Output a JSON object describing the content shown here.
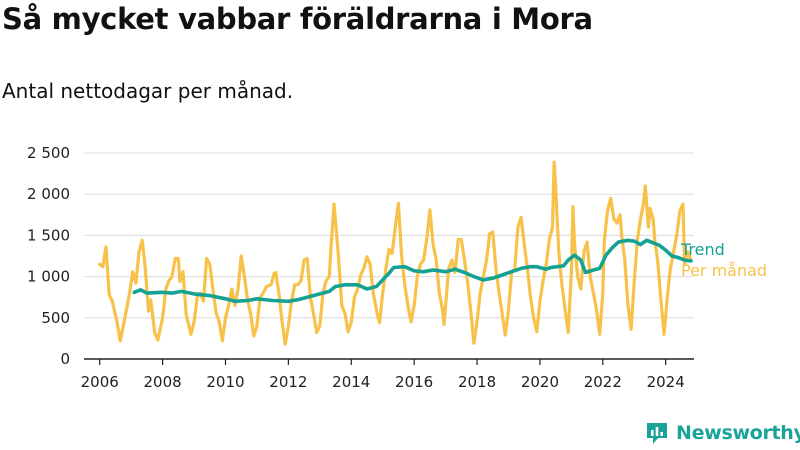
{
  "title": "Så mycket vabbar föräldrarna i Mora",
  "subtitle": "Antal nettodagar per månad.",
  "brand": {
    "name": "Newsworthy",
    "color": "#1aa399"
  },
  "colors": {
    "monthly": "#f8c24a",
    "trend": "#16a292",
    "grid": "#dcdcdc",
    "axis": "#222222"
  },
  "chart_data": {
    "type": "line",
    "x_ticks": [
      "2006",
      "2008",
      "2010",
      "2012",
      "2014",
      "2016",
      "2018",
      "2020",
      "2022",
      "2024"
    ],
    "y_ticks": [
      "0",
      "500",
      "1 000",
      "1 500",
      "2 000",
      "2 500"
    ],
    "ylim": [
      0,
      2500
    ],
    "xlim": [
      2005.5,
      2024.9
    ],
    "grid": true,
    "legend": "right-end",
    "series": [
      {
        "name": "Per månad",
        "color": "#f8c24a",
        "points": [
          [
            2006.0,
            1150
          ],
          [
            2006.1,
            1120
          ],
          [
            2006.2,
            1360
          ],
          [
            2006.3,
            780
          ],
          [
            2006.4,
            700
          ],
          [
            2006.55,
            450
          ],
          [
            2006.65,
            220
          ],
          [
            2006.8,
            500
          ],
          [
            2006.95,
            800
          ],
          [
            2007.05,
            1060
          ],
          [
            2007.15,
            920
          ],
          [
            2007.25,
            1300
          ],
          [
            2007.35,
            1440
          ],
          [
            2007.45,
            1100
          ],
          [
            2007.55,
            580
          ],
          [
            2007.62,
            720
          ],
          [
            2007.75,
            320
          ],
          [
            2007.85,
            230
          ],
          [
            2008.0,
            500
          ],
          [
            2008.1,
            850
          ],
          [
            2008.2,
            950
          ],
          [
            2008.3,
            1000
          ],
          [
            2008.4,
            1220
          ],
          [
            2008.5,
            1220
          ],
          [
            2008.55,
            940
          ],
          [
            2008.65,
            1060
          ],
          [
            2008.75,
            540
          ],
          [
            2008.9,
            300
          ],
          [
            2009.0,
            450
          ],
          [
            2009.1,
            750
          ],
          [
            2009.2,
            800
          ],
          [
            2009.3,
            700
          ],
          [
            2009.4,
            1220
          ],
          [
            2009.5,
            1150
          ],
          [
            2009.6,
            850
          ],
          [
            2009.7,
            560
          ],
          [
            2009.8,
            450
          ],
          [
            2009.9,
            220
          ],
          [
            2010.0,
            500
          ],
          [
            2010.1,
            650
          ],
          [
            2010.2,
            850
          ],
          [
            2010.3,
            650
          ],
          [
            2010.4,
            850
          ],
          [
            2010.5,
            1250
          ],
          [
            2010.6,
            1000
          ],
          [
            2010.7,
            720
          ],
          [
            2010.8,
            550
          ],
          [
            2010.9,
            280
          ],
          [
            2011.0,
            400
          ],
          [
            2011.1,
            750
          ],
          [
            2011.2,
            800
          ],
          [
            2011.3,
            880
          ],
          [
            2011.45,
            900
          ],
          [
            2011.55,
            1040
          ],
          [
            2011.6,
            1050
          ],
          [
            2011.7,
            800
          ],
          [
            2011.8,
            450
          ],
          [
            2011.9,
            180
          ],
          [
            2012.0,
            400
          ],
          [
            2012.1,
            700
          ],
          [
            2012.2,
            900
          ],
          [
            2012.3,
            900
          ],
          [
            2012.4,
            950
          ],
          [
            2012.5,
            1200
          ],
          [
            2012.6,
            1220
          ],
          [
            2012.7,
            750
          ],
          [
            2012.8,
            550
          ],
          [
            2012.9,
            320
          ],
          [
            2013.0,
            400
          ],
          [
            2013.1,
            800
          ],
          [
            2013.2,
            950
          ],
          [
            2013.3,
            1000
          ],
          [
            2013.35,
            1320
          ],
          [
            2013.45,
            1880
          ],
          [
            2013.5,
            1680
          ],
          [
            2013.6,
            1200
          ],
          [
            2013.7,
            650
          ],
          [
            2013.8,
            550
          ],
          [
            2013.9,
            330
          ],
          [
            2014.0,
            450
          ],
          [
            2014.1,
            750
          ],
          [
            2014.2,
            850
          ],
          [
            2014.3,
            1020
          ],
          [
            2014.4,
            1100
          ],
          [
            2014.5,
            1240
          ],
          [
            2014.6,
            1150
          ],
          [
            2014.7,
            800
          ],
          [
            2014.85,
            500
          ],
          [
            2014.9,
            440
          ],
          [
            2015.0,
            800
          ],
          [
            2015.1,
            1100
          ],
          [
            2015.2,
            1330
          ],
          [
            2015.3,
            1280
          ],
          [
            2015.4,
            1600
          ],
          [
            2015.5,
            1890
          ],
          [
            2015.6,
            1250
          ],
          [
            2015.7,
            900
          ],
          [
            2015.8,
            650
          ],
          [
            2015.9,
            450
          ],
          [
            2016.0,
            650
          ],
          [
            2016.1,
            1000
          ],
          [
            2016.2,
            1150
          ],
          [
            2016.3,
            1200
          ],
          [
            2016.4,
            1450
          ],
          [
            2016.5,
            1810
          ],
          [
            2016.6,
            1400
          ],
          [
            2016.7,
            1200
          ],
          [
            2016.8,
            800
          ],
          [
            2016.9,
            600
          ],
          [
            2016.95,
            420
          ],
          [
            2017.0,
            650
          ],
          [
            2017.1,
            1100
          ],
          [
            2017.2,
            1200
          ],
          [
            2017.3,
            1050
          ],
          [
            2017.4,
            1450
          ],
          [
            2017.5,
            1450
          ],
          [
            2017.6,
            1200
          ],
          [
            2017.7,
            930
          ],
          [
            2017.8,
            580
          ],
          [
            2017.9,
            190
          ],
          [
            2018.0,
            450
          ],
          [
            2018.1,
            800
          ],
          [
            2018.2,
            1000
          ],
          [
            2018.3,
            1200
          ],
          [
            2018.4,
            1520
          ],
          [
            2018.5,
            1540
          ],
          [
            2018.6,
            1100
          ],
          [
            2018.7,
            800
          ],
          [
            2018.8,
            550
          ],
          [
            2018.9,
            290
          ],
          [
            2019.0,
            600
          ],
          [
            2019.1,
            1050
          ],
          [
            2019.2,
            1100
          ],
          [
            2019.3,
            1600
          ],
          [
            2019.4,
            1720
          ],
          [
            2019.5,
            1400
          ],
          [
            2019.6,
            1100
          ],
          [
            2019.7,
            750
          ],
          [
            2019.8,
            500
          ],
          [
            2019.9,
            330
          ],
          [
            2020.0,
            700
          ],
          [
            2020.1,
            950
          ],
          [
            2020.2,
            1150
          ],
          [
            2020.3,
            1450
          ],
          [
            2020.4,
            1600
          ],
          [
            2020.45,
            2390
          ],
          [
            2020.5,
            2100
          ],
          [
            2020.6,
            1300
          ],
          [
            2020.7,
            900
          ],
          [
            2020.8,
            600
          ],
          [
            2020.9,
            320
          ],
          [
            2021.0,
            1050
          ],
          [
            2021.05,
            1850
          ],
          [
            2021.1,
            1400
          ],
          [
            2021.2,
            1000
          ],
          [
            2021.3,
            850
          ],
          [
            2021.4,
            1300
          ],
          [
            2021.5,
            1420
          ],
          [
            2021.6,
            1000
          ],
          [
            2021.7,
            800
          ],
          [
            2021.8,
            600
          ],
          [
            2021.9,
            300
          ],
          [
            2022.0,
            800
          ],
          [
            2022.05,
            1450
          ],
          [
            2022.15,
            1800
          ],
          [
            2022.25,
            1950
          ],
          [
            2022.35,
            1700
          ],
          [
            2022.45,
            1650
          ],
          [
            2022.55,
            1750
          ],
          [
            2022.6,
            1500
          ],
          [
            2022.7,
            1200
          ],
          [
            2022.8,
            650
          ],
          [
            2022.9,
            360
          ],
          [
            2023.0,
            950
          ],
          [
            2023.1,
            1450
          ],
          [
            2023.2,
            1700
          ],
          [
            2023.3,
            1900
          ],
          [
            2023.35,
            2100
          ],
          [
            2023.45,
            1600
          ],
          [
            2023.5,
            1830
          ],
          [
            2023.6,
            1700
          ],
          [
            2023.65,
            1450
          ],
          [
            2023.75,
            1180
          ],
          [
            2023.85,
            700
          ],
          [
            2023.95,
            300
          ],
          [
            2024.05,
            750
          ],
          [
            2024.15,
            1100
          ],
          [
            2024.25,
            1300
          ],
          [
            2024.35,
            1500
          ],
          [
            2024.45,
            1800
          ],
          [
            2024.55,
            1880
          ],
          [
            2024.6,
            1150
          ],
          [
            2024.7,
            1300
          ],
          [
            2024.8,
            1200
          ]
        ]
      },
      {
        "name": "Trend",
        "color": "#16a292",
        "points": [
          [
            2007.1,
            810
          ],
          [
            2007.3,
            840
          ],
          [
            2007.5,
            800
          ],
          [
            2008.0,
            810
          ],
          [
            2008.3,
            800
          ],
          [
            2008.6,
            820
          ],
          [
            2009.0,
            790
          ],
          [
            2009.5,
            770
          ],
          [
            2010.0,
            730
          ],
          [
            2010.3,
            700
          ],
          [
            2010.7,
            710
          ],
          [
            2011.0,
            730
          ],
          [
            2011.5,
            710
          ],
          [
            2012.0,
            700
          ],
          [
            2012.3,
            720
          ],
          [
            2012.7,
            760
          ],
          [
            2013.0,
            790
          ],
          [
            2013.3,
            820
          ],
          [
            2013.5,
            880
          ],
          [
            2013.8,
            900
          ],
          [
            2014.2,
            900
          ],
          [
            2014.5,
            850
          ],
          [
            2014.8,
            880
          ],
          [
            2015.0,
            960
          ],
          [
            2015.2,
            1040
          ],
          [
            2015.35,
            1110
          ],
          [
            2015.7,
            1120
          ],
          [
            2016.0,
            1070
          ],
          [
            2016.3,
            1060
          ],
          [
            2016.6,
            1080
          ],
          [
            2017.0,
            1060
          ],
          [
            2017.3,
            1090
          ],
          [
            2017.6,
            1050
          ],
          [
            2017.9,
            1000
          ],
          [
            2018.2,
            960
          ],
          [
            2018.5,
            980
          ],
          [
            2018.8,
            1020
          ],
          [
            2019.1,
            1060
          ],
          [
            2019.4,
            1100
          ],
          [
            2019.7,
            1120
          ],
          [
            2019.9,
            1120
          ],
          [
            2020.2,
            1090
          ],
          [
            2020.35,
            1110
          ],
          [
            2020.55,
            1120
          ],
          [
            2020.75,
            1130
          ],
          [
            2020.9,
            1200
          ],
          [
            2021.1,
            1260
          ],
          [
            2021.3,
            1200
          ],
          [
            2021.45,
            1050
          ],
          [
            2021.7,
            1080
          ],
          [
            2021.9,
            1100
          ],
          [
            2022.1,
            1260
          ],
          [
            2022.3,
            1350
          ],
          [
            2022.5,
            1420
          ],
          [
            2022.8,
            1440
          ],
          [
            2023.0,
            1430
          ],
          [
            2023.2,
            1390
          ],
          [
            2023.4,
            1440
          ],
          [
            2023.6,
            1410
          ],
          [
            2023.8,
            1380
          ],
          [
            2024.0,
            1320
          ],
          [
            2024.2,
            1250
          ],
          [
            2024.4,
            1230
          ],
          [
            2024.6,
            1200
          ],
          [
            2024.8,
            1190
          ]
        ]
      }
    ]
  }
}
